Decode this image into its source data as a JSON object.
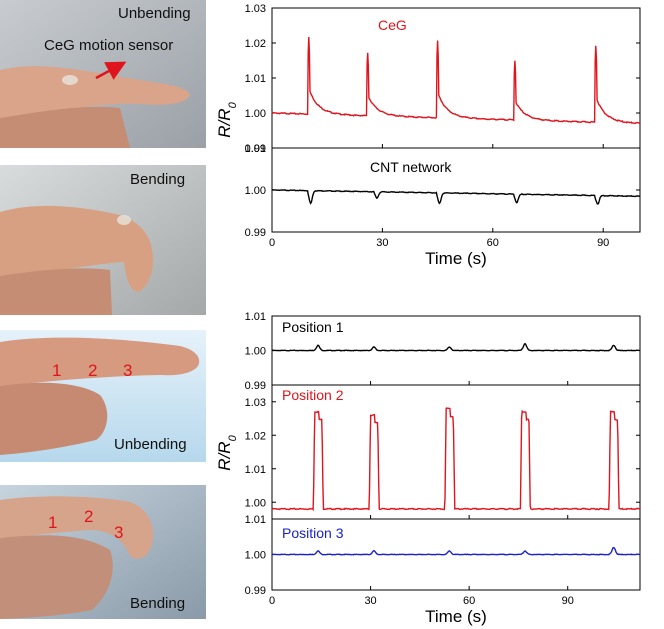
{
  "photos": [
    {
      "label": "Unbending",
      "annotation": "CeG motion sensor",
      "annotation_color": "#e0141c"
    },
    {
      "label": "Bending"
    },
    {
      "label": "Unbending",
      "positions": [
        "1",
        "2",
        "3"
      ]
    },
    {
      "label": "Bending",
      "positions": [
        "1",
        "2",
        "3"
      ]
    }
  ],
  "chart_data": [
    {
      "type": "line",
      "xlabel": "Time (s)",
      "ylabel": "R/R0",
      "xlim": [
        0,
        100
      ],
      "x_ticks": [
        "0",
        "30",
        "60",
        "90"
      ],
      "panels": [
        {
          "name": "CeG",
          "color": "#e0141c",
          "ylim": [
            0.99,
            1.03
          ],
          "y_ticks": [
            "0.99",
            "1.00",
            "1.01",
            "1.02",
            "1.03"
          ],
          "baseline": 1.0,
          "drift": -0.003,
          "peaks": [
            {
              "x": 10,
              "y": 1.022
            },
            {
              "x": 26,
              "y": 1.018
            },
            {
              "x": 45,
              "y": 1.022
            },
            {
              "x": 66,
              "y": 1.017
            },
            {
              "x": 88,
              "y": 1.022
            }
          ],
          "spike": "up"
        },
        {
          "name": "CNT network",
          "color": "#000000",
          "ylim": [
            0.99,
            1.01
          ],
          "y_ticks": [
            "0.99",
            "1.00",
            "1.01"
          ],
          "baseline": 1.0,
          "drift": -0.0015,
          "peaks": [
            {
              "x": 10,
              "y": 0.997
            },
            {
              "x": 28,
              "y": 0.9985
            },
            {
              "x": 45,
              "y": 0.9975
            },
            {
              "x": 66,
              "y": 0.998
            },
            {
              "x": 88,
              "y": 0.998
            }
          ],
          "spike": "down"
        }
      ]
    },
    {
      "type": "line",
      "xlabel": "Time (s)",
      "ylabel": "R/R0",
      "xlim": [
        0,
        112
      ],
      "x_ticks": [
        "0",
        "30",
        "60",
        "90"
      ],
      "panels": [
        {
          "name": "Position 1",
          "color": "#000000",
          "ylim": [
            0.99,
            1.01
          ],
          "y_ticks": [
            "0.99",
            "1.00",
            "1.01"
          ],
          "baseline": 1.0,
          "drift": 0,
          "peaks": [
            {
              "x": 14,
              "y": 1.0015
            },
            {
              "x": 31,
              "y": 1.001
            },
            {
              "x": 54,
              "y": 1.001
            },
            {
              "x": 77,
              "y": 1.002
            },
            {
              "x": 104,
              "y": 1.0015
            }
          ],
          "spike": "bump"
        },
        {
          "name": "Position 2",
          "color": "#e0141c",
          "ylim": [
            0.995,
            1.035
          ],
          "y_ticks": [
            "1.00",
            "1.01",
            "1.02",
            "1.03"
          ],
          "baseline": 0.998,
          "drift": 0,
          "peaks": [
            {
              "x": 14,
              "y": 1.027
            },
            {
              "x": 31,
              "y": 1.026
            },
            {
              "x": 54,
              "y": 1.028
            },
            {
              "x": 77,
              "y": 1.027
            },
            {
              "x": 104,
              "y": 1.027
            }
          ],
          "spike": "plateau"
        },
        {
          "name": "Position 3",
          "color": "#1a22c8",
          "ylim": [
            0.99,
            1.01
          ],
          "y_ticks": [
            "0.99",
            "1.00",
            "1.01"
          ],
          "baseline": 1.0,
          "drift": 0,
          "peaks": [
            {
              "x": 14,
              "y": 1.001
            },
            {
              "x": 31,
              "y": 1.001
            },
            {
              "x": 54,
              "y": 1.001
            },
            {
              "x": 77,
              "y": 1.001
            },
            {
              "x": 104,
              "y": 1.002
            }
          ],
          "spike": "bump"
        }
      ]
    }
  ]
}
